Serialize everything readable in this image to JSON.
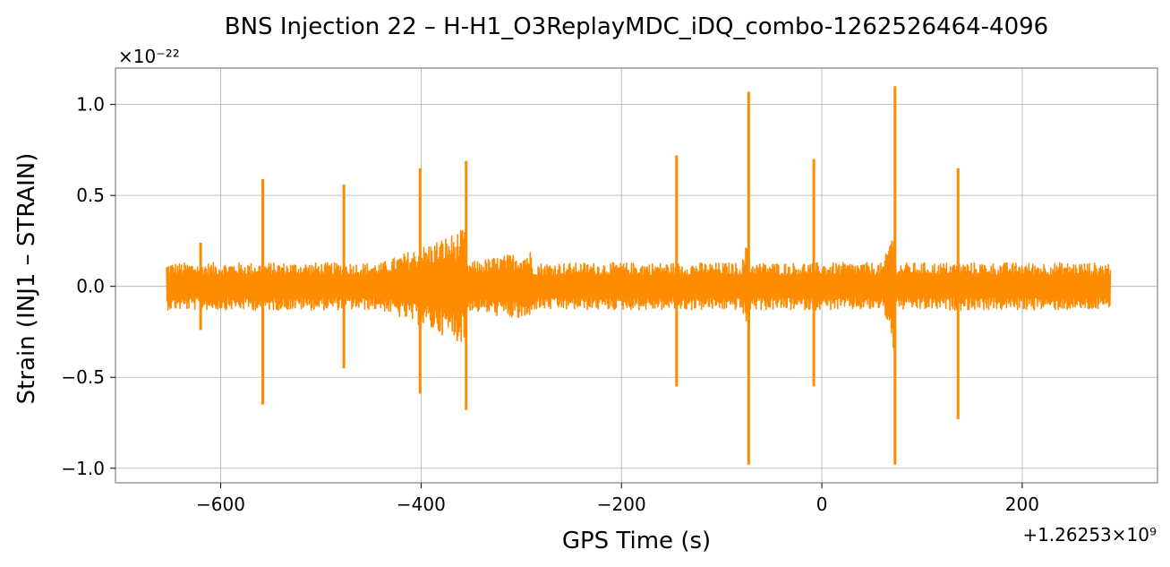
{
  "chart_data": {
    "type": "line",
    "title": "BNS Injection 22 – H-H1_O3ReplayMDC_iDQ_combo-1262526464-4096",
    "xlabel": "GPS Time (s)",
    "ylabel": "Strain (INJ1 – STRAIN)",
    "x_offset_label": "+1.26253×10⁹",
    "y_scale_label": "×10⁻²²",
    "xlim": [
      -705,
      335
    ],
    "ylim": [
      -1.08,
      1.2
    ],
    "x_ticks": [
      -600,
      -400,
      -200,
      0,
      200
    ],
    "x_tick_labels": [
      "−600",
      "−400",
      "−200",
      "0",
      "200"
    ],
    "y_ticks": [
      -1.0,
      -0.5,
      0.0,
      0.5,
      1.0
    ],
    "y_tick_labels": [
      "−1.0",
      "−0.5",
      "0.0",
      "0.5",
      "1.0"
    ],
    "grid": true,
    "color": "#ff8c00",
    "series": [
      {
        "x_range": [
          -654,
          288
        ],
        "baseline_amplitude": 0.13,
        "loud_segments": [
          {
            "x": [
              -440,
              -355
            ],
            "amplitude": 0.32
          },
          {
            "x": [
              -355,
              -290
            ],
            "amplitude": 0.2
          },
          {
            "x": [
              -80,
              -72
            ],
            "amplitude": 0.3
          },
          {
            "x": [
              62,
              72
            ],
            "amplitude": 0.38
          }
        ],
        "glitches": [
          {
            "x": -620,
            "upper": 0.24,
            "lower": -0.24
          },
          {
            "x": -558,
            "upper": 0.59,
            "lower": -0.65
          },
          {
            "x": -477,
            "upper": 0.56,
            "lower": -0.45
          },
          {
            "x": -401,
            "upper": 0.65,
            "lower": -0.59
          },
          {
            "x": -355,
            "upper": 0.69,
            "lower": -0.68
          },
          {
            "x": -145,
            "upper": 0.72,
            "lower": -0.55
          },
          {
            "x": -73,
            "upper": 1.07,
            "lower": -0.98
          },
          {
            "x": -8,
            "upper": 0.7,
            "lower": -0.55
          },
          {
            "x": 73,
            "upper": 1.1,
            "lower": -0.98
          },
          {
            "x": 136,
            "upper": 0.65,
            "lower": -0.73
          }
        ]
      }
    ]
  }
}
